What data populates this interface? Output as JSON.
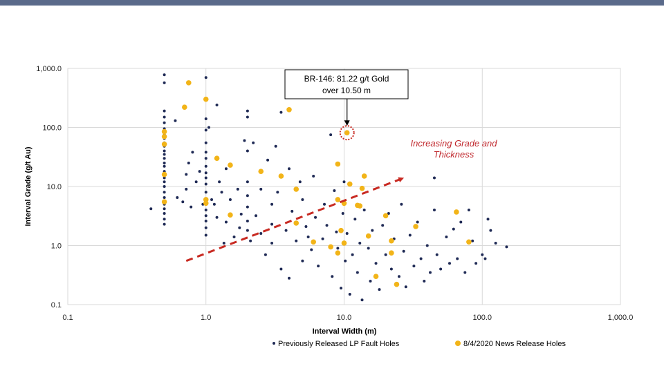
{
  "colors": {
    "header_bar": "#5a6a8a",
    "series1": "#1f2a55",
    "series2": "#f2b418",
    "trend": "#c82a22",
    "grid": "#d9d9d9"
  },
  "chart_data": {
    "type": "scatter",
    "title": "",
    "xlabel": "Interval Width (m)",
    "ylabel": "Interval Grade (g/t Au)",
    "x_scale": "log",
    "y_scale": "log",
    "xlim": [
      0.1,
      1000
    ],
    "ylim": [
      0.1,
      1000
    ],
    "grid": "horizontal and vertical",
    "legend_position": "bottom",
    "x_tick_labels": [
      "0.1",
      "1.0",
      "10.0",
      "100.0",
      "1,000.0"
    ],
    "y_tick_labels": [
      "0.1",
      "1.0",
      "10.0",
      "100.0",
      "1,000.0"
    ],
    "annotation": {
      "line1": "BR-146: 81.22 g/t Gold",
      "line2": "over 10.50 m",
      "x": 10.5,
      "y": 81.22
    },
    "trend_arrow": {
      "label_line1": "Increasing Grade and",
      "label_line2": "Thickness",
      "from": [
        0.72,
        0.55
      ],
      "to": [
        26,
        13.5
      ]
    },
    "series": [
      {
        "name": "Previously Released LP Fault Holes",
        "points": [
          [
            0.5,
            780
          ],
          [
            0.5,
            570
          ],
          [
            0.5,
            190
          ],
          [
            0.5,
            150
          ],
          [
            0.5,
            120
          ],
          [
            0.5,
            95
          ],
          [
            0.5,
            85
          ],
          [
            0.5,
            75
          ],
          [
            0.5,
            65
          ],
          [
            0.5,
            55
          ],
          [
            0.5,
            48
          ],
          [
            0.5,
            40
          ],
          [
            0.5,
            35
          ],
          [
            0.5,
            30
          ],
          [
            0.5,
            25
          ],
          [
            0.5,
            22
          ],
          [
            0.5,
            18
          ],
          [
            0.5,
            14
          ],
          [
            0.5,
            12
          ],
          [
            0.5,
            10
          ],
          [
            0.5,
            8
          ],
          [
            0.5,
            6.5
          ],
          [
            0.5,
            5
          ],
          [
            0.5,
            4.2
          ],
          [
            0.5,
            3.5
          ],
          [
            0.5,
            2.8
          ],
          [
            0.5,
            2.3
          ],
          [
            0.4,
            4.2
          ],
          [
            0.6,
            130
          ],
          [
            0.62,
            6.5
          ],
          [
            0.68,
            5.5
          ],
          [
            0.72,
            16
          ],
          [
            0.72,
            9
          ],
          [
            0.75,
            25
          ],
          [
            0.78,
            4.5
          ],
          [
            0.8,
            38
          ],
          [
            0.85,
            12
          ],
          [
            0.9,
            18
          ],
          [
            0.95,
            5
          ],
          [
            1.0,
            700
          ],
          [
            1.0,
            140
          ],
          [
            1.0,
            90
          ],
          [
            1.0,
            55
          ],
          [
            1.0,
            38
          ],
          [
            1.0,
            30
          ],
          [
            1.0,
            22
          ],
          [
            1.0,
            17
          ],
          [
            1.0,
            14
          ],
          [
            1.0,
            11
          ],
          [
            1.0,
            8
          ],
          [
            1.0,
            6
          ],
          [
            1.0,
            5
          ],
          [
            1.0,
            4
          ],
          [
            1.0,
            3.2
          ],
          [
            1.0,
            2.6
          ],
          [
            1.0,
            2
          ],
          [
            1.0,
            1.5
          ],
          [
            1.05,
            100
          ],
          [
            1.1,
            6
          ],
          [
            1.15,
            5
          ],
          [
            1.2,
            240
          ],
          [
            1.2,
            3
          ],
          [
            1.25,
            12
          ],
          [
            1.3,
            8
          ],
          [
            1.35,
            1.1
          ],
          [
            1.4,
            2.5
          ],
          [
            1.4,
            20
          ],
          [
            1.5,
            6
          ],
          [
            1.6,
            1.4
          ],
          [
            1.7,
            9
          ],
          [
            1.75,
            2
          ],
          [
            1.8,
            3.4
          ],
          [
            1.9,
            60
          ],
          [
            2.0,
            190
          ],
          [
            2.0,
            150
          ],
          [
            2.0,
            40
          ],
          [
            2.0,
            12
          ],
          [
            2.0,
            7
          ],
          [
            2.0,
            4.5
          ],
          [
            2.0,
            2.6
          ],
          [
            2.0,
            1.8
          ],
          [
            2.1,
            1.2
          ],
          [
            2.2,
            55
          ],
          [
            2.3,
            3.2
          ],
          [
            2.5,
            9
          ],
          [
            2.5,
            1.6
          ],
          [
            2.7,
            0.7
          ],
          [
            2.8,
            28
          ],
          [
            3.0,
            5
          ],
          [
            3.0,
            2.3
          ],
          [
            3.0,
            1.1
          ],
          [
            3.2,
            48
          ],
          [
            3.3,
            8
          ],
          [
            3.5,
            0.4
          ],
          [
            3.5,
            180
          ],
          [
            3.8,
            1.8
          ],
          [
            4.0,
            0.28
          ],
          [
            4.0,
            20
          ],
          [
            4.2,
            3.8
          ],
          [
            4.5,
            2.5
          ],
          [
            4.5,
            1.2
          ],
          [
            4.8,
            12
          ],
          [
            5.0,
            0.55
          ],
          [
            5.0,
            6
          ],
          [
            5.3,
            2.1
          ],
          [
            5.5,
            1.4
          ],
          [
            5.8,
            0.85
          ],
          [
            6.0,
            15
          ],
          [
            6.2,
            3
          ],
          [
            6.5,
            0.45
          ],
          [
            7.0,
            1.3
          ],
          [
            7.2,
            5
          ],
          [
            7.5,
            2.2
          ],
          [
            8.0,
            75
          ],
          [
            8.2,
            0.3
          ],
          [
            8.5,
            8.5
          ],
          [
            8.8,
            1.7
          ],
          [
            9.0,
            0.9
          ],
          [
            9.5,
            0.19
          ],
          [
            9.8,
            3.5
          ],
          [
            10.0,
            12
          ],
          [
            10.2,
            0.55
          ],
          [
            10.5,
            1.6
          ],
          [
            11.0,
            0.15
          ],
          [
            11.5,
            0.7
          ],
          [
            12.0,
            2.8
          ],
          [
            12.5,
            0.35
          ],
          [
            13.0,
            1.1
          ],
          [
            13.5,
            0.12
          ],
          [
            14.0,
            4
          ],
          [
            15.0,
            0.9
          ],
          [
            15.5,
            0.25
          ],
          [
            16.0,
            1.8
          ],
          [
            17.0,
            0.5
          ],
          [
            18.0,
            0.18
          ],
          [
            19.0,
            2.2
          ],
          [
            20.0,
            0.7
          ],
          [
            21.0,
            3.5
          ],
          [
            22.0,
            0.4
          ],
          [
            23.0,
            1.3
          ],
          [
            25.0,
            0.3
          ],
          [
            26.0,
            5
          ],
          [
            27.0,
            0.8
          ],
          [
            28.0,
            0.2
          ],
          [
            30.0,
            1.5
          ],
          [
            32.0,
            0.45
          ],
          [
            34.0,
            2.5
          ],
          [
            36.0,
            0.6
          ],
          [
            38.0,
            0.25
          ],
          [
            40.0,
            1
          ],
          [
            42.0,
            0.35
          ],
          [
            45.0,
            4
          ],
          [
            47.0,
            0.7
          ],
          [
            50.0,
            0.4
          ],
          [
            55.0,
            1.4
          ],
          [
            58.0,
            0.5
          ],
          [
            62.0,
            1.9
          ],
          [
            66.0,
            0.6
          ],
          [
            70.0,
            2.5
          ],
          [
            75.0,
            0.35
          ],
          [
            80.0,
            4
          ],
          [
            85.0,
            1.2
          ],
          [
            90.0,
            0.5
          ],
          [
            100.0,
            0.7
          ],
          [
            105.0,
            0.6
          ],
          [
            110.0,
            2.8
          ],
          [
            115.0,
            1.8
          ],
          [
            125.0,
            1.1
          ],
          [
            150.0,
            0.95
          ],
          [
            45.0,
            14
          ]
        ]
      },
      {
        "name": "8/4/2020 News Release Holes",
        "points": [
          [
            0.5,
            85
          ],
          [
            0.5,
            70
          ],
          [
            0.5,
            52
          ],
          [
            0.5,
            16
          ],
          [
            0.5,
            5.5
          ],
          [
            0.75,
            570
          ],
          [
            0.7,
            220
          ],
          [
            1.0,
            300
          ],
          [
            1.0,
            6
          ],
          [
            1.0,
            5.2
          ],
          [
            1.2,
            30
          ],
          [
            1.5,
            23
          ],
          [
            1.5,
            3.3
          ],
          [
            2.5,
            18
          ],
          [
            3.5,
            15
          ],
          [
            4.0,
            200
          ],
          [
            4.5,
            9
          ],
          [
            4.5,
            2.4
          ],
          [
            6.0,
            1.15
          ],
          [
            8.0,
            0.95
          ],
          [
            9.0,
            24
          ],
          [
            9.0,
            6
          ],
          [
            9.5,
            1.8
          ],
          [
            10.0,
            5.2
          ],
          [
            9.0,
            0.75
          ],
          [
            10.0,
            1.1
          ],
          [
            11.0,
            11
          ],
          [
            12.5,
            4.8
          ],
          [
            13.0,
            4.7
          ],
          [
            14.0,
            15
          ],
          [
            13.5,
            9.3
          ],
          [
            15.0,
            1.45
          ],
          [
            17.0,
            0.3
          ],
          [
            20.0,
            3.2
          ],
          [
            22.0,
            0.75
          ],
          [
            22.0,
            1.2
          ],
          [
            24.0,
            0.22
          ],
          [
            33.0,
            2.1
          ],
          [
            65.0,
            3.7
          ],
          [
            80.0,
            1.15
          ],
          [
            10.5,
            81.22
          ]
        ]
      }
    ]
  }
}
